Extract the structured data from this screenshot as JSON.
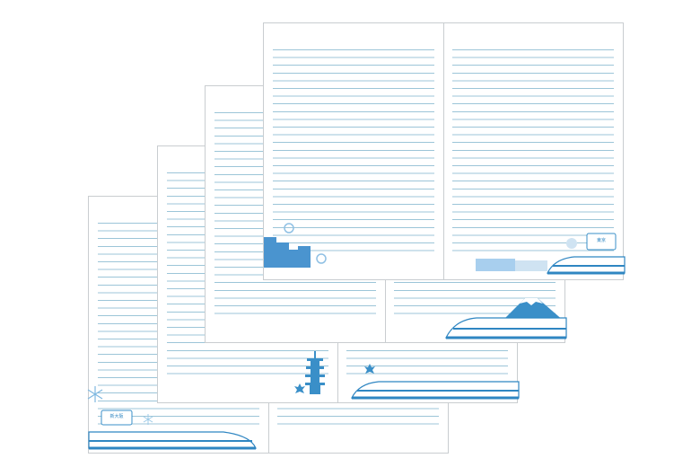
{
  "product": {
    "sheet_count": 4,
    "line_color": "#9cc5d8",
    "illustration_color": "#3a8fc8"
  },
  "sheets": [
    {
      "id": "sheet-1",
      "motifs": [
        "snowflake",
        "station-sign",
        "shinkansen-train"
      ],
      "sign_text": "新大阪"
    },
    {
      "id": "sheet-2",
      "motifs": [
        "pagoda",
        "maple-leaf",
        "shinkansen-train"
      ]
    },
    {
      "id": "sheet-3",
      "motifs": [
        "mount-fuji",
        "shinkansen-train"
      ]
    },
    {
      "id": "sheet-4",
      "motifs": [
        "city-buildings",
        "cherry-blossom",
        "station-sign",
        "station-platform",
        "shinkansen-train"
      ],
      "sign_text": "東京"
    }
  ]
}
